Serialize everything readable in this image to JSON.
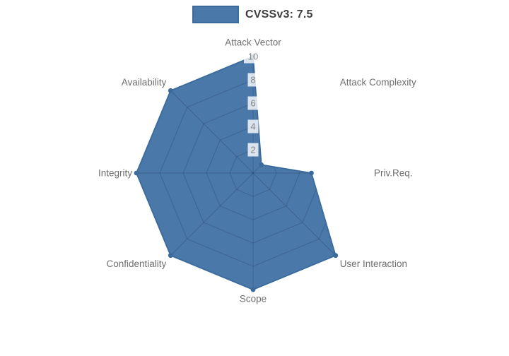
{
  "legend": {
    "label": "CVSSv3: 7.5"
  },
  "chart_data": {
    "type": "radar",
    "title": "CVSSv3: 7.5",
    "legend_position": "top-center",
    "categories": [
      "Attack Vector",
      "Attack Complexity",
      "Priv.Req.",
      "User Interaction",
      "Scope",
      "Confidentiality",
      "Integrity",
      "Availability"
    ],
    "values": [
      10,
      1,
      5,
      10,
      10,
      10,
      10,
      10
    ],
    "radial_ticks": [
      2,
      4,
      6,
      8,
      10
    ],
    "radial_range": [
      0,
      10
    ],
    "grid": true,
    "colors": {
      "fill": "#4A78A8",
      "line": "#3A6B9C",
      "grid_line": "rgba(20,30,60,0.18)",
      "axis_label": "#6E6E6E",
      "tick_label": "#868686",
      "tick_box": "rgba(255,255,255,0.8)"
    }
  }
}
